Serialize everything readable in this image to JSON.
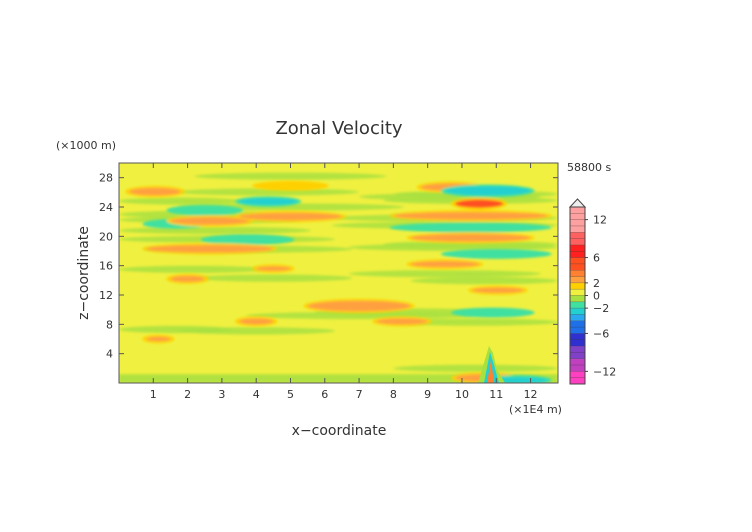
{
  "chart_data": {
    "type": "heatmap",
    "title": "Zonal Velocity",
    "xlabel": "x−coordinate",
    "ylabel": "z−coordinate",
    "x_unit": "(×1E4 m)",
    "y_unit": "(×1000 m)",
    "time_label": "58800 s",
    "xlim": [
      0,
      12.8
    ],
    "ylim": [
      0,
      30
    ],
    "x_ticks": [
      1,
      2,
      3,
      4,
      5,
      6,
      7,
      8,
      9,
      10,
      11,
      12
    ],
    "y_ticks": [
      4,
      8,
      12,
      16,
      20,
      24,
      28
    ],
    "grid": false,
    "colorbar": {
      "placement": "right",
      "range": [
        -14,
        14
      ],
      "tick_values": [
        12,
        6,
        2,
        0,
        -2,
        -6,
        -12
      ],
      "tick_labels": [
        "12",
        "6",
        "2",
        "0",
        "−2",
        "−6",
        "−12"
      ],
      "levels": [
        {
          "from": -14,
          "to": -12,
          "color": "#ff40c0"
        },
        {
          "from": -12,
          "to": -10,
          "color": "#c040c0"
        },
        {
          "from": -10,
          "to": -8,
          "color": "#8040c8"
        },
        {
          "from": -8,
          "to": -6,
          "color": "#3030d0"
        },
        {
          "from": -6,
          "to": -4,
          "color": "#1f6fe8"
        },
        {
          "from": -4,
          "to": -3,
          "color": "#2aa8f0"
        },
        {
          "from": -3,
          "to": -2,
          "color": "#22d0d0"
        },
        {
          "from": -2,
          "to": -1,
          "color": "#40e0a0"
        },
        {
          "from": -1,
          "to": 0,
          "color": "#a8e040"
        },
        {
          "from": 0,
          "to": 1,
          "color": "#f0f040"
        },
        {
          "from": 1,
          "to": 2,
          "color": "#ffd000"
        },
        {
          "from": 2,
          "to": 3,
          "color": "#ffa040"
        },
        {
          "from": 3,
          "to": 4,
          "color": "#ff8030"
        },
        {
          "from": 4,
          "to": 6,
          "color": "#ff5020"
        },
        {
          "from": 6,
          "to": 8,
          "color": "#ff2020"
        },
        {
          "from": 8,
          "to": 10,
          "color": "#ff6060"
        },
        {
          "from": 10,
          "to": 14,
          "color": "#ffa0a0"
        }
      ]
    },
    "bands": [
      {
        "x": [
          0.3,
          1.8
        ],
        "z": [
          25.6,
          26.6
        ],
        "value": 2.5
      },
      {
        "x": [
          4.0,
          6.0
        ],
        "z": [
          26.5,
          27.3
        ],
        "value": 1.5
      },
      {
        "x": [
          8.8,
          10.5
        ],
        "z": [
          26.2,
          27.2
        ],
        "value": 2.5
      },
      {
        "x": [
          3.5,
          5.2
        ],
        "z": [
          24.3,
          25.2
        ],
        "value": -2.5
      },
      {
        "x": [
          1.5,
          3.5
        ],
        "z": [
          23.1,
          24.0
        ],
        "value": -1.5
      },
      {
        "x": [
          0.8,
          2.5
        ],
        "z": [
          21.3,
          22.1
        ],
        "value": -1.5
      },
      {
        "x": [
          1.5,
          3.8
        ],
        "z": [
          21.6,
          22.6
        ],
        "value": 2.5
      },
      {
        "x": [
          3.5,
          6.5
        ],
        "z": [
          22.2,
          23.2
        ],
        "value": 2.5
      },
      {
        "x": [
          2.5,
          5.0
        ],
        "z": [
          19.1,
          20.0
        ],
        "value": -1.5
      },
      {
        "x": [
          0.8,
          4.5
        ],
        "z": [
          17.8,
          18.8
        ],
        "value": 2.5
      },
      {
        "x": [
          4.0,
          5.0
        ],
        "z": [
          15.3,
          15.9
        ],
        "value": 2.5
      },
      {
        "x": [
          1.5,
          2.5
        ],
        "z": [
          13.8,
          14.6
        ],
        "value": 2.5
      },
      {
        "x": [
          5.5,
          8.5
        ],
        "z": [
          9.8,
          11.2
        ],
        "value": 2.5
      },
      {
        "x": [
          7.5,
          9.0
        ],
        "z": [
          8.0,
          8.8
        ],
        "value": 2.5
      },
      {
        "x": [
          3.5,
          4.5
        ],
        "z": [
          8.0,
          8.8
        ],
        "value": 2.5
      },
      {
        "x": [
          0.8,
          1.5
        ],
        "z": [
          5.7,
          6.3
        ],
        "value": 2.5
      },
      {
        "x": [
          9.5,
          12.0
        ],
        "z": [
          25.6,
          26.8
        ],
        "value": -2.5
      },
      {
        "x": [
          9.8,
          11.2
        ],
        "z": [
          23.9,
          25.0
        ],
        "value": 4.0
      },
      {
        "x": [
          8.0,
          12.5
        ],
        "z": [
          22.3,
          23.3
        ],
        "value": 2.5
      },
      {
        "x": [
          8.0,
          12.5
        ],
        "z": [
          20.8,
          21.6
        ],
        "value": -1.5
      },
      {
        "x": [
          8.5,
          12.0
        ],
        "z": [
          19.3,
          20.3
        ],
        "value": 2.5
      },
      {
        "x": [
          9.5,
          12.5
        ],
        "z": [
          17.2,
          18.0
        ],
        "value": -1.5
      },
      {
        "x": [
          8.5,
          10.5
        ],
        "z": [
          15.8,
          16.6
        ],
        "value": 2.5
      },
      {
        "x": [
          10.3,
          11.8
        ],
        "z": [
          12.3,
          13.0
        ],
        "value": 2.5
      },
      {
        "x": [
          9.8,
          12.0
        ],
        "z": [
          9.2,
          10.0
        ],
        "value": -1.5
      },
      {
        "x": [
          9.8,
          11.5
        ],
        "z": [
          0.2,
          1.2
        ],
        "value": 2.5
      },
      {
        "x": [
          10.8,
          12.5
        ],
        "z": [
          0.0,
          0.8
        ],
        "value": -2.5
      }
    ]
  }
}
